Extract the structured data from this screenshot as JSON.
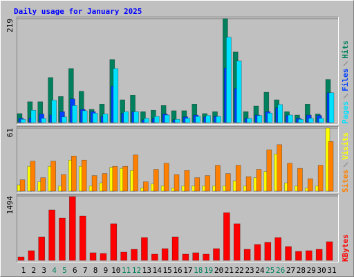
{
  "chart_data": [
    {
      "type": "bar",
      "title": "Daily usage for January 2025",
      "title_color": "#0000ff",
      "ylim": [
        0,
        219
      ],
      "yticks": [
        219
      ],
      "series": [
        {
          "name": "Hits",
          "color": "#00805c",
          "values": [
            19,
            44,
            44,
            95,
            55,
            114,
            66,
            28,
            39,
            133,
            48,
            58,
            23,
            26,
            36,
            25,
            25,
            39,
            19,
            23,
            219,
            149,
            23,
            35,
            64,
            48,
            23,
            16,
            39,
            18,
            91
          ]
        },
        {
          "name": "Files",
          "color": "#0040ff",
          "values": [
            9,
            10,
            18,
            16,
            23,
            50,
            28,
            23,
            13,
            77,
            20,
            23,
            6,
            9,
            18,
            6,
            12,
            16,
            12,
            13,
            115,
            72,
            9,
            16,
            23,
            31,
            15,
            9,
            16,
            15,
            63
          ]
        },
        {
          "name": "Pages",
          "color": "#00e0ff",
          "values": [
            7,
            26,
            9,
            47,
            12,
            36,
            25,
            20,
            18,
            114,
            23,
            23,
            9,
            13,
            16,
            7,
            9,
            13,
            15,
            13,
            180,
            130,
            9,
            15,
            20,
            38,
            16,
            7,
            9,
            9,
            63
          ]
        }
      ]
    },
    {
      "type": "bar",
      "ylim": [
        0,
        61
      ],
      "yticks": [
        61
      ],
      "series": [
        {
          "name": "Visits",
          "color": "#ffff00",
          "values": [
            6,
            24,
            9,
            24,
            5,
            30,
            24,
            5,
            8,
            23,
            22,
            20,
            3,
            7,
            5,
            3,
            5,
            5,
            5,
            5,
            5,
            10,
            5,
            13,
            19,
            36,
            8,
            5,
            3,
            5,
            61
          ]
        },
        {
          "name": "Sites",
          "color": "#ff8000",
          "values": [
            11,
            29,
            13,
            29,
            16,
            34,
            30,
            15,
            17,
            24,
            24,
            35,
            9,
            21,
            27,
            16,
            20,
            13,
            15,
            25,
            17,
            25,
            14,
            21,
            40,
            45,
            27,
            22,
            12,
            25,
            48
          ]
        }
      ]
    },
    {
      "type": "bar",
      "ylim": [
        0,
        1494
      ],
      "yticks": [
        1494
      ],
      "categories": [
        "1",
        "2",
        "3",
        "4",
        "5",
        "6",
        "7",
        "8",
        "9",
        "10",
        "11",
        "12",
        "13",
        "14",
        "15",
        "16",
        "17",
        "18",
        "19",
        "20",
        "21",
        "22",
        "23",
        "24",
        "25",
        "26",
        "27",
        "28",
        "29",
        "30",
        "31"
      ],
      "category_colors": [
        "#000000",
        "#000000",
        "#000000",
        "#00805c",
        "#00805c",
        "#000000",
        "#000000",
        "#000000",
        "#000000",
        "#000000",
        "#00805c",
        "#00805c",
        "#000000",
        "#000000",
        "#000000",
        "#000000",
        "#000000",
        "#00805c",
        "#00805c",
        "#000000",
        "#000000",
        "#000000",
        "#000000",
        "#000000",
        "#00805c",
        "#00805c",
        "#000000",
        "#000000",
        "#000000",
        "#000000",
        "#000000"
      ],
      "series": [
        {
          "name": "KBytes",
          "color": "#ff0000",
          "values": [
            80,
            225,
            546,
            1172,
            980,
            1478,
            1028,
            177,
            161,
            851,
            193,
            257,
            530,
            145,
            273,
            546,
            145,
            177,
            145,
            273,
            1108,
            851,
            257,
            369,
            418,
            530,
            321,
            209,
            225,
            257,
            434
          ]
        }
      ]
    }
  ]
}
